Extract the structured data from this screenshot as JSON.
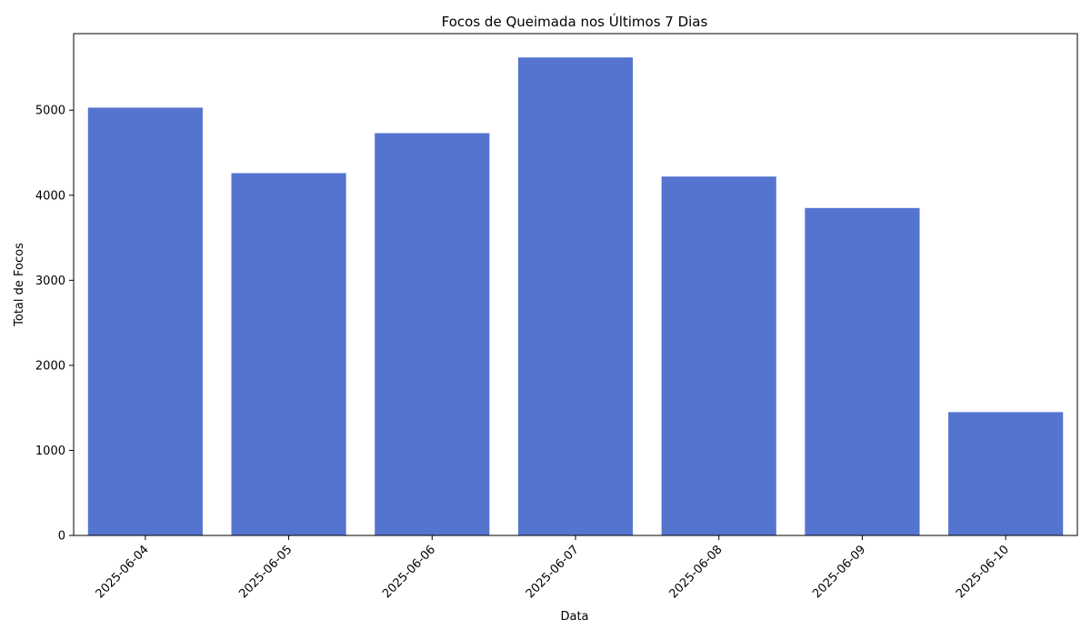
{
  "chart_data": {
    "type": "bar",
    "title": "Focos de Queimada nos Últimos 7 Dias",
    "xlabel": "Data",
    "ylabel": "Total de Focos",
    "categories": [
      "2025-06-04",
      "2025-06-05",
      "2025-06-06",
      "2025-06-07",
      "2025-06-08",
      "2025-06-09",
      "2025-06-10"
    ],
    "values": [
      5030,
      4260,
      4730,
      5620,
      4220,
      3850,
      1450
    ],
    "ylim": [
      0,
      5900
    ],
    "yticks": [
      0,
      1000,
      2000,
      3000,
      4000,
      5000
    ],
    "bar_color": "#5574cf",
    "grid": false,
    "legend": "none",
    "xtick_rotation": 45
  }
}
